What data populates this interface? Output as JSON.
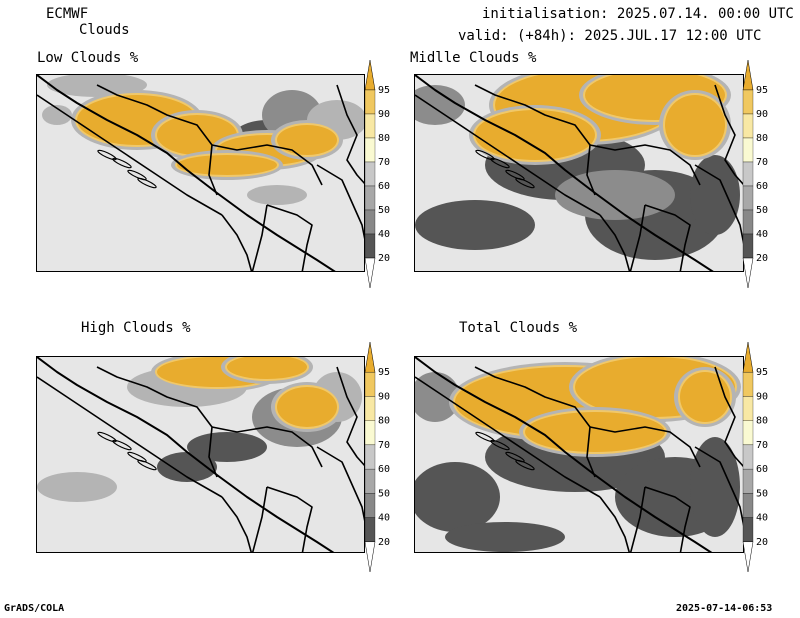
{
  "header": {
    "model": "ECMWF",
    "product": "Clouds",
    "initialisation": "initialisation: 2025.07.14. 00:00 UTC",
    "valid": "valid: (+84h): 2025.JUL.17 12:00 UTC"
  },
  "panels": [
    {
      "title": "Low Clouds %"
    },
    {
      "title": "Midlle Clouds %"
    },
    {
      "title": "High Clouds %"
    },
    {
      "title": "Total Clouds %"
    }
  ],
  "colorbar": {
    "levels": [
      "95",
      "90",
      "80",
      "70",
      "60",
      "50",
      "40",
      "20"
    ],
    "colors": [
      "#e8ac2e",
      "#f0c860",
      "#f8e8a4",
      "#fafad2",
      "#c8c8c8",
      "#a8a8a8",
      "#787878",
      "#505050"
    ]
  },
  "map_colors": {
    "background": "#e6e6e6",
    "dark": "#555555",
    "mid": "#8c8c8c",
    "light": "#b4b4b4",
    "cloud": "#e8ac2e",
    "cloud_light": "#f0c86a",
    "border": "#000000"
  },
  "footer": {
    "credit": "GrADS/COLA",
    "timestamp": "2025-07-14-06:53"
  }
}
